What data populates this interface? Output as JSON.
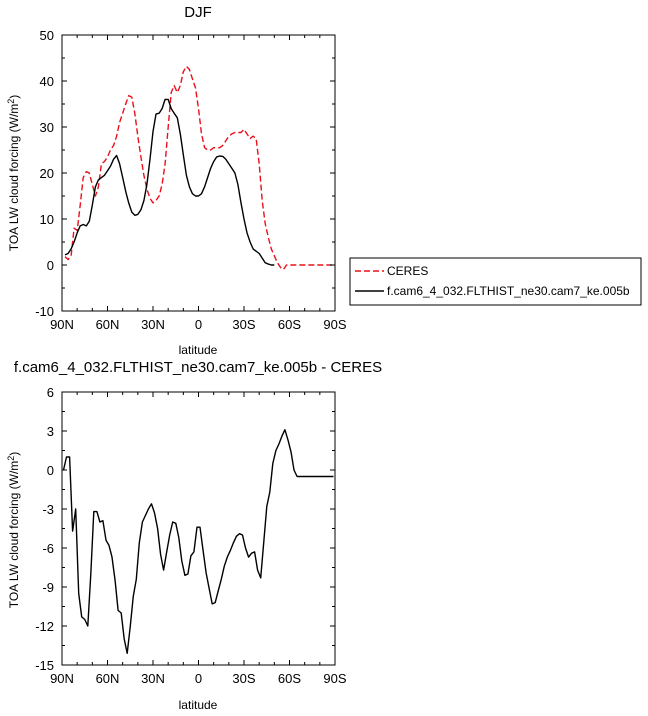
{
  "chart_data": [
    {
      "type": "line",
      "title": "DJF",
      "xlabel": "latitude",
      "ylabel": "TOA LW cloud forcing (W/m",
      "ylabel_sup": "2",
      "ylabel_close": ")",
      "xlim": [
        90,
        -90
      ],
      "ylim": [
        -10,
        50
      ],
      "x_ticks": [
        90,
        60,
        30,
        0,
        -30,
        -60,
        -90
      ],
      "x_tick_labels": [
        "90N",
        "60N",
        "30N",
        "0",
        "30S",
        "60S",
        "90S"
      ],
      "y_ticks": [
        -10,
        0,
        10,
        20,
        30,
        40,
        50
      ],
      "y_tick_labels": [
        "-10",
        "0",
        "10",
        "20",
        "30",
        "40",
        "50"
      ],
      "legend_position": "right",
      "series": [
        {
          "name": "CERES",
          "color": "#e8101a",
          "dash": "dashed",
          "x": [
            88,
            86,
            84,
            82,
            80,
            78,
            76,
            74,
            72,
            70,
            68,
            66,
            64,
            62,
            60,
            58,
            56,
            54,
            52,
            50,
            48,
            46,
            44,
            42,
            40,
            38,
            36,
            34,
            32,
            30,
            28,
            26,
            24,
            22,
            20,
            18,
            16,
            14,
            12,
            10,
            8,
            6,
            4,
            2,
            0,
            -2,
            -4,
            -6,
            -8,
            -10,
            -12,
            -14,
            -16,
            -18,
            -20,
            -22,
            -24,
            -26,
            -28,
            -30,
            -32,
            -34,
            -36,
            -38,
            -40,
            -42,
            -44,
            -46,
            -48,
            -50,
            -52,
            -54,
            -56,
            -58,
            -60,
            -62,
            -64,
            -66,
            -68,
            -70,
            -72,
            -74,
            -76,
            -78,
            -80,
            -82,
            -84,
            -86,
            -88
          ],
          "y": [
            1.8,
            1.2,
            2.0,
            8.0,
            7.5,
            13.0,
            19.0,
            20.3,
            20.0,
            17.5,
            15.0,
            17.0,
            22.0,
            22.5,
            23.5,
            25.0,
            26.0,
            28.0,
            31.0,
            33.0,
            35.0,
            36.8,
            36.5,
            33.0,
            28.0,
            23.5,
            19.5,
            16.5,
            14.5,
            13.5,
            14.0,
            15.0,
            17.5,
            22.0,
            30.0,
            37.5,
            39.0,
            37.5,
            39.0,
            42.0,
            43.2,
            42.5,
            40.5,
            38.5,
            34.0,
            28.5,
            25.5,
            25.0,
            25.0,
            25.5,
            25.5,
            25.5,
            26.0,
            27.0,
            28.0,
            28.5,
            28.8,
            28.8,
            28.8,
            29.5,
            28.5,
            27.5,
            28.0,
            27.5,
            22.0,
            14.0,
            9.0,
            6.0,
            3.5,
            2.0,
            0.5,
            -0.5,
            -1.0,
            0.0,
            0.0,
            0.0,
            0.0,
            0.0,
            0.0,
            0.0,
            0.0,
            0.0,
            0.0,
            0.0,
            0.0,
            0.0,
            0.0,
            0.0,
            0.0
          ]
        },
        {
          "name": "f.cam6_4_032.FLTHIST_ne30.cam7_ke.005b",
          "color": "#000000",
          "dash": "solid",
          "x": [
            88,
            86,
            84,
            82,
            80,
            78,
            76,
            74,
            72,
            70,
            68,
            66,
            64,
            62,
            60,
            58,
            56,
            54,
            52,
            50,
            48,
            46,
            44,
            42,
            40,
            38,
            36,
            34,
            32,
            30,
            28,
            26,
            24,
            22,
            20,
            18,
            16,
            14,
            12,
            10,
            8,
            6,
            4,
            2,
            0,
            -2,
            -4,
            -6,
            -8,
            -10,
            -12,
            -14,
            -16,
            -18,
            -20,
            -22,
            -24,
            -26,
            -28,
            -30,
            -32,
            -34,
            -36,
            -38,
            -40,
            -42,
            -44,
            -46,
            -48,
            -50
          ],
          "y": [
            2.2,
            2.5,
            3.5,
            5.0,
            7.0,
            8.5,
            8.8,
            8.5,
            9.5,
            13.0,
            17.0,
            18.5,
            19.0,
            19.5,
            20.5,
            21.5,
            23.0,
            23.8,
            22.0,
            19.0,
            16.0,
            13.5,
            11.5,
            10.8,
            11.0,
            12.0,
            14.0,
            17.5,
            23.0,
            29.0,
            32.8,
            33.0,
            34.0,
            36.0,
            36.0,
            34.0,
            33.0,
            32.0,
            28.5,
            24.0,
            19.5,
            17.0,
            15.5,
            15.0,
            15.0,
            15.5,
            17.0,
            19.0,
            21.0,
            22.5,
            23.5,
            23.7,
            23.6,
            23.0,
            22.0,
            21.0,
            20.0,
            17.5,
            13.5,
            10.0,
            7.0,
            5.0,
            3.5,
            3.0,
            2.5,
            1.5,
            0.5,
            0.2,
            0.0,
            0.0
          ]
        }
      ]
    },
    {
      "type": "line",
      "title": "f.cam6_4_032.FLTHIST_ne30.cam7_ke.005b - CERES",
      "xlabel": "latitude",
      "ylabel": "TOA LW cloud forcing (W/m",
      "ylabel_sup": "2",
      "ylabel_close": ")",
      "xlim": [
        90,
        -90
      ],
      "ylim": [
        -15,
        6
      ],
      "x_ticks": [
        90,
        60,
        30,
        0,
        -30,
        -60,
        -90
      ],
      "x_tick_labels": [
        "90N",
        "60N",
        "30N",
        "0",
        "30S",
        "60S",
        "90S"
      ],
      "y_ticks": [
        -15,
        -12,
        -9,
        -6,
        -3,
        0,
        3,
        6
      ],
      "y_tick_labels": [
        "-15",
        "-12",
        "-9",
        "-6",
        "-3",
        "0",
        "3",
        "6"
      ],
      "series": [
        {
          "color": "#000000",
          "dash": "solid",
          "x": [
            89,
            87,
            85,
            83,
            81,
            79,
            77,
            75,
            73,
            71,
            69,
            67,
            65,
            63,
            61,
            59,
            57,
            55,
            53,
            51,
            49,
            47,
            45,
            43,
            41,
            39,
            37,
            35,
            33,
            31,
            29,
            27,
            25,
            23,
            21,
            19,
            17,
            15,
            13,
            11,
            9,
            7,
            5,
            3,
            1,
            -1,
            -3,
            -5,
            -7,
            -9,
            -11,
            -13,
            -15,
            -17,
            -19,
            -21,
            -23,
            -25,
            -27,
            -29,
            -31,
            -33,
            -35,
            -37,
            -39,
            -41,
            -43,
            -45,
            -47,
            -49,
            -51,
            -53,
            -55,
            -57,
            -59,
            -61,
            -63,
            -65,
            -67,
            -69,
            -71,
            -73,
            -75,
            -77,
            -79,
            -81,
            -83,
            -85,
            -87,
            -89
          ],
          "y": [
            0.0,
            1.0,
            1.0,
            -4.7,
            -3.0,
            -9.5,
            -11.3,
            -11.5,
            -12.0,
            -8.0,
            -3.2,
            -3.2,
            -4.0,
            -3.9,
            -5.4,
            -5.8,
            -6.7,
            -8.5,
            -10.8,
            -11.0,
            -13.0,
            -14.1,
            -12.0,
            -9.7,
            -8.4,
            -5.6,
            -4.0,
            -3.5,
            -3.0,
            -2.6,
            -3.3,
            -4.5,
            -6.5,
            -7.7,
            -6.3,
            -5.0,
            -4.0,
            -4.1,
            -5.2,
            -7.0,
            -8.1,
            -8.0,
            -6.6,
            -6.3,
            -4.4,
            -4.4,
            -6.2,
            -7.9,
            -9.1,
            -10.3,
            -10.2,
            -9.3,
            -8.4,
            -7.4,
            -6.7,
            -6.2,
            -5.6,
            -5.1,
            -4.9,
            -5.0,
            -6.0,
            -6.7,
            -6.4,
            -6.3,
            -7.7,
            -8.3,
            -5.6,
            -2.8,
            -1.7,
            0.5,
            1.5,
            2.0,
            2.6,
            3.1,
            2.3,
            1.4,
            0.0,
            -0.5,
            -0.5,
            -0.5,
            -0.5,
            -0.5,
            -0.5,
            -0.5,
            -0.5,
            -0.5,
            -0.5,
            -0.5,
            -0.5,
            -0.5
          ]
        }
      ]
    }
  ]
}
